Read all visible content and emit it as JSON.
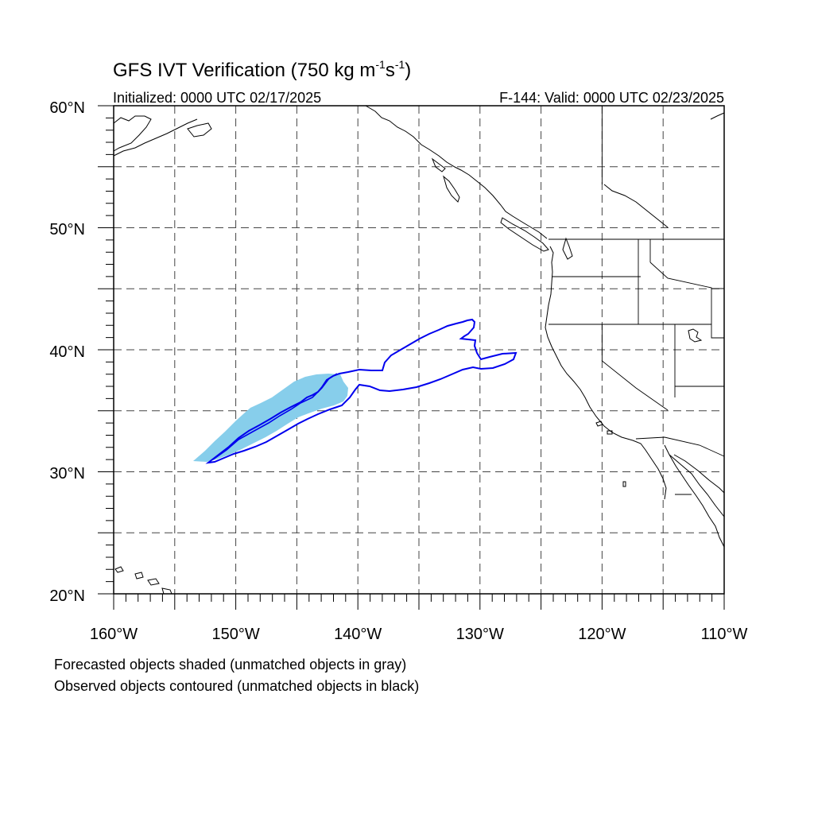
{
  "title": {
    "main": "GFS IVT Verification (750 kg m",
    "exp1": "-1",
    "mid": "s",
    "exp2": "-1",
    "close": ")"
  },
  "initialized": "Initialized: 0000 UTC 02/17/2025",
  "valid": "F-144: Valid: 0000 UTC 02/23/2025",
  "map": {
    "lon_range": [
      -160,
      -110
    ],
    "lat_range": [
      20,
      60
    ],
    "grid_lon_step": 5,
    "grid_lat_step": 5,
    "lat_labels": [
      "60°N",
      "50°N",
      "40°N",
      "30°N",
      "20°N"
    ],
    "lon_labels": [
      "160°W",
      "150°W",
      "140°W",
      "130°W",
      "120°W",
      "110°W"
    ],
    "forecast_color": "#87ceeb",
    "observed_color": "#0000ee"
  },
  "legend": {
    "line1": "Forecasted objects shaded (unmatched objects in gray)",
    "line2": "Observed objects contoured (unmatched objects in black)"
  }
}
